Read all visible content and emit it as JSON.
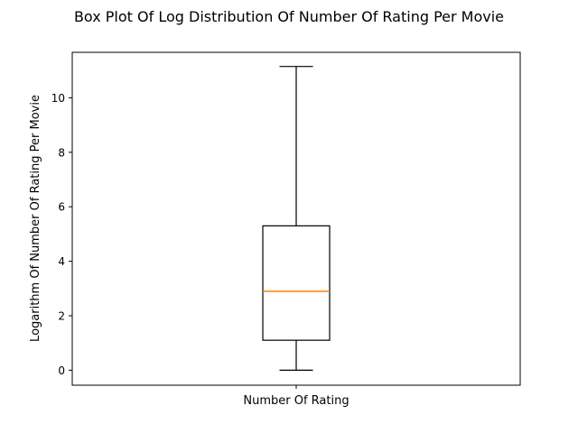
{
  "chart_data": {
    "type": "box",
    "title": "Box Plot Of Log Distribution Of Number Of Rating Per Movie",
    "xlabel": "",
    "ylabel": "Logarithm Of Number Of Rating Per Movie",
    "categories": [
      "Number Of Rating"
    ],
    "ylim": [
      -0.55,
      11.67
    ],
    "yticks": [
      0,
      2,
      4,
      6,
      8,
      10
    ],
    "grid": false,
    "series": [
      {
        "whisker_low": 0,
        "q1": 1.1,
        "median": 2.9,
        "q3": 5.3,
        "whisker_high": 11.15
      }
    ],
    "colors": {
      "box": "#000000",
      "median": "#ff7f0e"
    }
  }
}
